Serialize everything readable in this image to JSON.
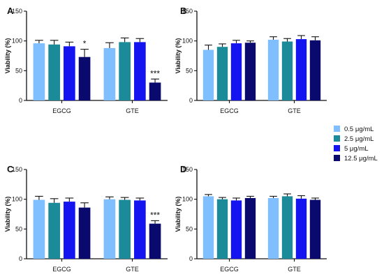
{
  "colors": {
    "series": [
      "#7fbfff",
      "#1b8a99",
      "#1414f0",
      "#0a0a6e"
    ],
    "axis": "#111111",
    "error_bar": "#111111"
  },
  "legend": {
    "entries": [
      "0.5 μg/mL",
      "2.5 μg/mL",
      "5 μg/mL",
      "12.5 μg/mL"
    ]
  },
  "chart_data": [
    {
      "type": "bar",
      "panel": "A",
      "ylabel": "Viability (%)",
      "ylim": [
        0,
        150
      ],
      "yticks": [
        0,
        50,
        100,
        150
      ],
      "categories": [
        "EGCG",
        "GTE"
      ],
      "series": [
        {
          "name": "0.5 μg/mL",
          "values": [
            96,
            88
          ],
          "errors": [
            5,
            9
          ]
        },
        {
          "name": "2.5 μg/mL",
          "values": [
            94,
            98
          ],
          "errors": [
            7,
            7
          ]
        },
        {
          "name": "5 μg/mL",
          "values": [
            91,
            98
          ],
          "errors": [
            7,
            6
          ]
        },
        {
          "name": "12.5 μg/mL",
          "values": [
            73,
            30
          ],
          "errors": [
            13,
            6
          ]
        }
      ],
      "annotations": [
        {
          "category": "EGCG",
          "series": 3,
          "text": "*"
        },
        {
          "category": "GTE",
          "series": 3,
          "text": "***"
        }
      ]
    },
    {
      "type": "bar",
      "panel": "B",
      "ylabel": "Viability (%)",
      "ylim": [
        0,
        150
      ],
      "yticks": [
        0,
        50,
        100,
        150
      ],
      "categories": [
        "EGCG",
        "GTE"
      ],
      "series": [
        {
          "name": "0.5 μg/mL",
          "values": [
            85,
            102
          ],
          "errors": [
            8,
            5
          ]
        },
        {
          "name": "2.5 μg/mL",
          "values": [
            90,
            99
          ],
          "errors": [
            5,
            5
          ]
        },
        {
          "name": "5 μg/mL",
          "values": [
            96,
            103
          ],
          "errors": [
            5,
            6
          ]
        },
        {
          "name": "12.5 μg/mL",
          "values": [
            97,
            101
          ],
          "errors": [
            3,
            6
          ]
        }
      ],
      "annotations": []
    },
    {
      "type": "bar",
      "panel": "C",
      "ylabel": "Viability (%)",
      "ylim": [
        0,
        150
      ],
      "yticks": [
        0,
        50,
        100,
        150
      ],
      "categories": [
        "EGCG",
        "GTE"
      ],
      "series": [
        {
          "name": "0.5 μg/mL",
          "values": [
            99,
            100
          ],
          "errors": [
            6,
            4
          ]
        },
        {
          "name": "2.5 μg/mL",
          "values": [
            94,
            99
          ],
          "errors": [
            7,
            4
          ]
        },
        {
          "name": "5 μg/mL",
          "values": [
            96,
            98
          ],
          "errors": [
            6,
            4
          ]
        },
        {
          "name": "12.5 μg/mL",
          "values": [
            86,
            59
          ],
          "errors": [
            8,
            5
          ]
        }
      ],
      "annotations": [
        {
          "category": "GTE",
          "series": 3,
          "text": "***"
        }
      ]
    },
    {
      "type": "bar",
      "panel": "D",
      "ylabel": "Viability (%)",
      "ylim": [
        0,
        150
      ],
      "yticks": [
        0,
        50,
        100,
        150
      ],
      "categories": [
        "EGCG",
        "GTE"
      ],
      "series": [
        {
          "name": "0.5 μg/mL",
          "values": [
            105,
            102
          ],
          "errors": [
            3,
            3
          ]
        },
        {
          "name": "2.5 μg/mL",
          "values": [
            100,
            105
          ],
          "errors": [
            3,
            4
          ]
        },
        {
          "name": "5 μg/mL",
          "values": [
            98,
            101
          ],
          "errors": [
            4,
            5
          ]
        },
        {
          "name": "12.5 μg/mL",
          "values": [
            102,
            99
          ],
          "errors": [
            3,
            3
          ]
        }
      ],
      "annotations": []
    }
  ]
}
